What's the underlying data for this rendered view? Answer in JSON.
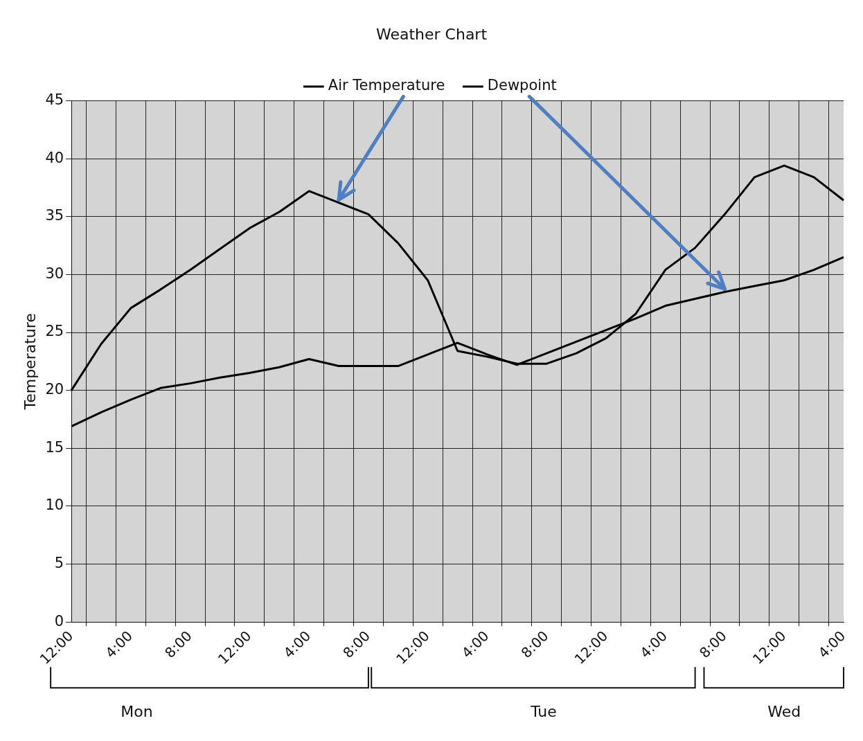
{
  "chart_data": {
    "type": "line",
    "title": "Weather Chart",
    "ylabel": "Temperature",
    "categories": [
      "12:00",
      null,
      "4:00",
      null,
      "8:00",
      null,
      "12:00",
      null,
      "4:00",
      null,
      "8:00",
      null,
      "12:00",
      null,
      "4:00",
      null,
      "8:00",
      null,
      "12:00",
      null,
      "4:00",
      null,
      "8:00",
      null,
      "12:00",
      null,
      "4:00"
    ],
    "series": [
      {
        "name": "Air Temperature",
        "color": "#000000",
        "values": [
          20,
          24,
          27.1,
          28.7,
          30.4,
          32.2,
          34,
          35.4,
          37.2,
          36.2,
          35.2,
          32.7,
          29.5,
          23.4,
          22.9,
          22.3,
          22.3,
          23.2,
          24.5,
          26.6,
          30.4,
          32.3,
          35.2,
          38.4,
          39.4,
          38.4,
          36.4
        ]
      },
      {
        "name": "Dewpoint",
        "color": "#000000",
        "values": [
          16.9,
          18.1,
          19.2,
          20.2,
          20.6,
          21.1,
          21.5,
          22,
          22.7,
          22.1,
          22.1,
          22.1,
          23.1,
          24.1,
          23.1,
          22.2,
          23.2,
          24.2,
          25.2,
          26.2,
          27.3,
          27.9,
          28.5,
          29,
          29.5,
          30.4,
          31.5
        ]
      }
    ],
    "ylim": [
      0,
      45
    ],
    "yticks": [
      0,
      5,
      10,
      15,
      20,
      25,
      30,
      35,
      40,
      45
    ],
    "grid": true,
    "legend": "top",
    "marker": "none",
    "line_style": "solid",
    "annotations": [
      "Mon",
      "Tue",
      "Wed"
    ]
  }
}
